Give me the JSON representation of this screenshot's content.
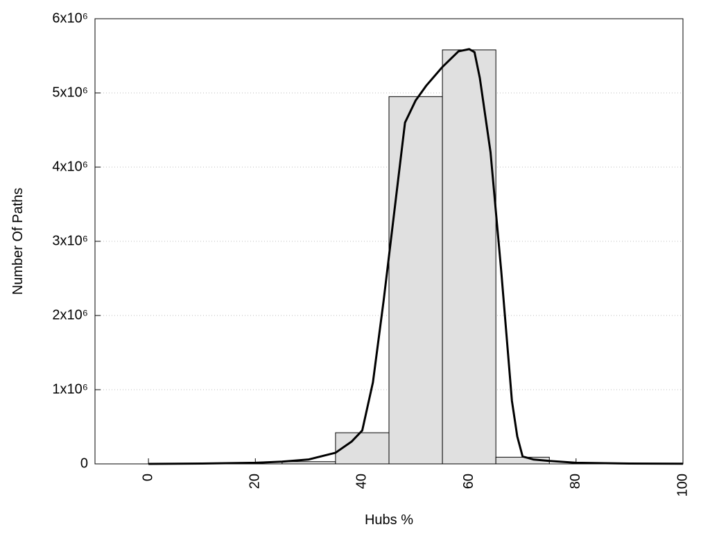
{
  "chart_data": {
    "type": "histogram",
    "xlabel": "Hubs %",
    "ylabel": "Number Of Paths",
    "bins": [
      25,
      35,
      45,
      55,
      65,
      75
    ],
    "values": [
      30000,
      420000,
      4950000,
      5580000,
      90000
    ],
    "color": "#e0e0e0",
    "curve": {
      "color": "#000000",
      "x": [
        0,
        10,
        20,
        25,
        30,
        35,
        38,
        40,
        42,
        44,
        46,
        48,
        50,
        52,
        55,
        58,
        60,
        61,
        62,
        64,
        66,
        68,
        69,
        70,
        72,
        75,
        80,
        90,
        100
      ],
      "values": [
        0,
        5000,
        15000,
        30000,
        60000,
        150000,
        300000,
        450000,
        1100000,
        2200000,
        3400000,
        4600000,
        4900000,
        5100000,
        5350000,
        5560000,
        5590000,
        5550000,
        5200000,
        4200000,
        2600000,
        850000,
        370000,
        100000,
        60000,
        40000,
        15000,
        5000,
        2000
      ]
    },
    "xlim": [
      -10,
      100
    ],
    "xticks": [
      0,
      20,
      40,
      60,
      80,
      100
    ],
    "ylim": [
      0,
      6000000
    ],
    "yticks": [
      0,
      {
        "value": 1000000,
        "label": "1x10⁶"
      },
      {
        "value": 2000000,
        "label": "2x10⁶"
      },
      {
        "value": 3000000,
        "label": "3x10⁶"
      },
      {
        "value": 4000000,
        "label": "4x10⁶"
      },
      {
        "value": 5000000,
        "label": "5x10⁶"
      },
      {
        "value": 6000000,
        "label": "6x10⁶"
      }
    ],
    "grid": true
  }
}
